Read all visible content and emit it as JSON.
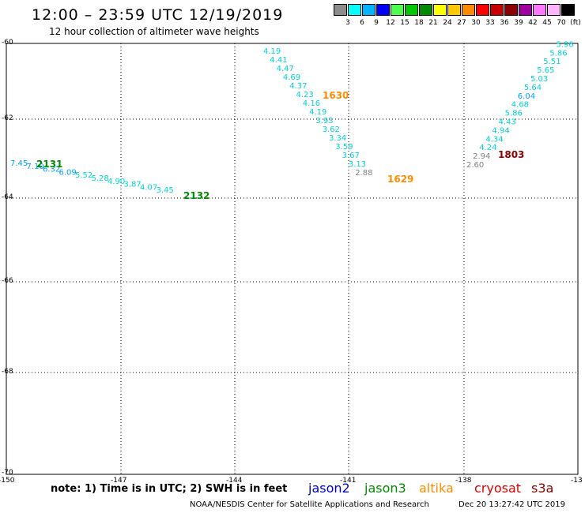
{
  "title": "12:00 – 23:59 UTC 12/19/2019",
  "subtitle": "12 hour collection of altimeter wave heights",
  "scale": {
    "colors": [
      "#8c8c8c",
      "#00ffff",
      "#00b4ff",
      "#0000ff",
      "#4cff4c",
      "#00c800",
      "#008c00",
      "#ffff00",
      "#ffc800",
      "#ff8c00",
      "#ff0000",
      "#c80000",
      "#8c0000",
      "#a000a0",
      "#ff78ff",
      "#ffb4ff",
      "#000000"
    ],
    "labels": [
      "3",
      "6",
      "9",
      "12",
      "15",
      "18",
      "21",
      "24",
      "27",
      "30",
      "33",
      "36",
      "39",
      "42",
      "45",
      "70",
      "(ft)"
    ]
  },
  "y_labels": [
    "-60",
    "-62",
    "-64",
    "-66",
    "-68",
    "-70"
  ],
  "x_labels": [
    "-150",
    "-147",
    "-144",
    "-141",
    "-138",
    "-13"
  ],
  "note": "note: 1) Time is in UTC; 2) SWH is in feet",
  "satellites": [
    {
      "name": "jason2",
      "color": "#0000dd"
    },
    {
      "name": "jason3",
      "color": "#008c00"
    },
    {
      "name": "altika",
      "color": "#ff8c00"
    },
    {
      "name": "cryosat",
      "color": "#e00000"
    },
    {
      "name": "s3a",
      "color": "#8c0000"
    }
  ],
  "credit": "NOAA/NESDIS Center for Satellite Applications and Research",
  "timestamp": "Dec 20 13:27:42 UTC 2019",
  "tracks": [
    {
      "satellite": "jason3",
      "start": "2131",
      "end": "2132",
      "values": [
        "7.45",
        "7.10",
        "6.32",
        "6.09",
        "5.52",
        "5.28",
        "4.90",
        "3.87",
        "4.07",
        "3.45"
      ]
    },
    {
      "satellite": "altika",
      "start": "1630",
      "end": "1629",
      "values": [
        "4.19",
        "4.41",
        "4.47",
        "4.69",
        "4.37",
        "4.23",
        "4.16",
        "4.19",
        "3.93",
        "3.62",
        "3.34",
        "3.59",
        "3.67",
        "3.13",
        "2.88"
      ]
    },
    {
      "satellite": "s3a",
      "start": "1803",
      "values": [
        "2.60",
        "2.94",
        "4.24",
        "4.34",
        "4.94",
        "4.43",
        "5.86",
        "4.68",
        "6.04",
        "5.64",
        "5.03",
        "5.65",
        "5.51",
        "5.86",
        "5.96"
      ]
    }
  ]
}
